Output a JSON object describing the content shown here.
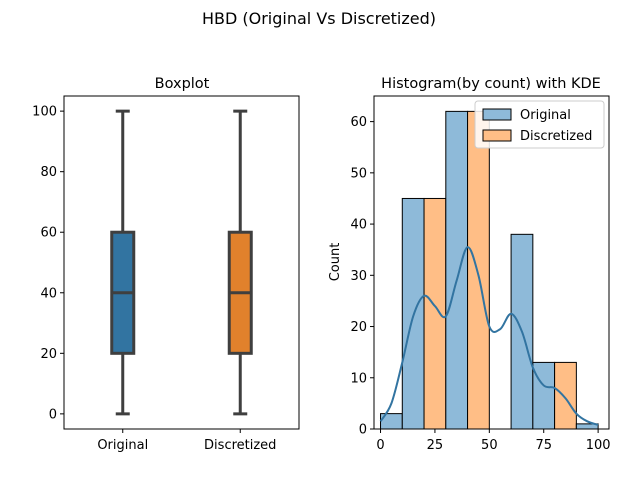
{
  "figure": {
    "suptitle": "HBD (Original Vs Discretized)"
  },
  "colors": {
    "blue": "#1f77b4",
    "orange": "#ff7f0e",
    "box_blue": "#3274a1",
    "box_orange": "#e1812c",
    "box_edge": "#3f3f3f",
    "hist_blue": "#8ebad9",
    "hist_orange": "#ffbe86",
    "hist_overlap": "#8e9a9f",
    "kde": "#3274a1",
    "axis": "#000000"
  },
  "chart_data": [
    {
      "type": "box",
      "title": "Boxplot",
      "xlabel": "",
      "ylabel": "",
      "ylim": [
        -5,
        105
      ],
      "yticks": [
        0,
        20,
        40,
        60,
        80,
        100
      ],
      "categories": [
        "Original",
        "Discretized"
      ],
      "boxes": [
        {
          "name": "Original",
          "min": 0,
          "q1": 20,
          "median": 40,
          "q3": 60,
          "max": 100,
          "color": "#3274a1"
        },
        {
          "name": "Discretized",
          "min": 0,
          "q1": 20,
          "median": 40,
          "q3": 60,
          "max": 100,
          "color": "#e1812c"
        }
      ]
    },
    {
      "type": "histogram",
      "title": "Histogram(by count) with KDE",
      "xlabel": "",
      "ylabel": "Count",
      "xlim": [
        -3,
        105
      ],
      "ylim": [
        0,
        65
      ],
      "xticks": [
        0,
        25,
        50,
        75,
        100
      ],
      "yticks": [
        0,
        10,
        20,
        30,
        40,
        50,
        60
      ],
      "legend": {
        "position": "top-right",
        "entries": [
          "Original",
          "Discretized"
        ]
      },
      "bins": [
        0,
        10,
        20,
        30,
        40,
        50,
        60,
        70,
        80,
        90,
        100
      ],
      "series": [
        {
          "name": "Original",
          "counts": [
            3,
            45,
            0,
            62,
            0,
            0,
            38,
            13,
            0,
            1
          ]
        },
        {
          "name": "Discretized",
          "counts": [
            0,
            0,
            45,
            0,
            62,
            0,
            0,
            0,
            13,
            0
          ]
        }
      ],
      "kde": {
        "x": [
          0,
          5,
          10,
          15,
          20,
          25,
          30,
          35,
          40,
          45,
          50,
          55,
          60,
          65,
          70,
          75,
          80,
          85,
          90,
          95,
          100
        ],
        "y": [
          1.5,
          5,
          13,
          22,
          26,
          24,
          22,
          29,
          35.5,
          30,
          20,
          19.5,
          22.5,
          19,
          12,
          8.5,
          8,
          6,
          3,
          1.5,
          0.8
        ]
      }
    }
  ]
}
